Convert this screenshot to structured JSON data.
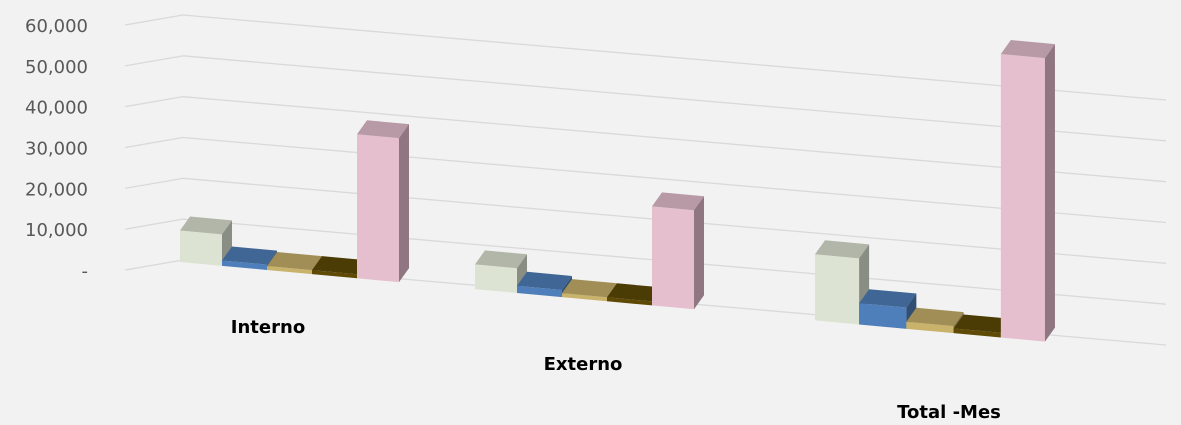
{
  "chart_data": {
    "type": "bar",
    "subtype": "3d-clustered-column",
    "title": "",
    "xlabel": "",
    "ylabel": "",
    "categories": [
      "Interno",
      "Externo",
      "Total -Mes"
    ],
    "yticks": [
      "-",
      "10,000",
      "20,000",
      "30,000",
      "40,000",
      "50,000",
      "60,000"
    ],
    "ylim": [
      0,
      60000
    ],
    "grid": true,
    "legend": "none",
    "series": [
      {
        "color": "#dde3d3",
        "values": [
          7000,
          5500,
          14000
        ]
      },
      {
        "color": "#4f7fba",
        "values": [
          1200,
          1600,
          4500
        ]
      },
      {
        "color": "#c9b26b",
        "values": [
          500,
          500,
          1500
        ]
      },
      {
        "color": "#5e4a05",
        "values": [
          300,
          400,
          1000
        ]
      },
      {
        "color": "#e6bfcf",
        "values": [
          32000,
          22000,
          60000
        ]
      }
    ]
  }
}
